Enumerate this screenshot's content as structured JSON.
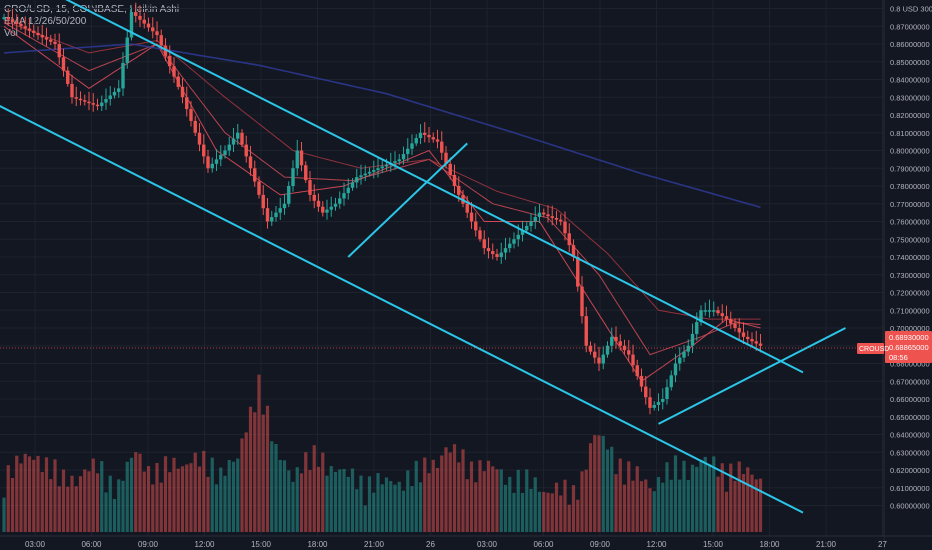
{
  "chart_data": {
    "type": "candlestick",
    "legend": {
      "symbol_line": "CRO/USD, 15, COINBASE, Heikin Ashi",
      "indicator_line": "EMA 12/26/50/200",
      "volume_line": "Vol"
    },
    "price_axis": {
      "ticks": [
        "0.8 USD 300",
        "0.87000000",
        "0.86000000",
        "0.85000000",
        "0.84000000",
        "0.83000000",
        "0.82000000",
        "0.81000000",
        "0.80000000",
        "0.79000000",
        "0.78000000",
        "0.77000000",
        "0.76000000",
        "0.75000000",
        "0.74000000",
        "0.73000000",
        "0.72000000",
        "0.71000000",
        "0.70000000",
        "0.69000000",
        "0.68000000",
        "0.67000000",
        "0.66000000",
        "0.65000000",
        "0.64000000",
        "0.63000000",
        "0.62000000",
        "0.61000000",
        "0.60000000"
      ],
      "ylim": [
        0.595,
        0.885
      ]
    },
    "time_axis": {
      "ticks": [
        "03:00",
        "06:00",
        "09:00",
        "12:00",
        "15:00",
        "18:00",
        "21:00",
        "26",
        "03:00",
        "06:00",
        "09:00",
        "12:00",
        "15:00",
        "18:00",
        "21:00",
        "27"
      ]
    },
    "last_price": {
      "label": "CROUSD",
      "values": [
        "0.68930000",
        "0.68865000",
        "08:56"
      ],
      "value": 0.6887
    },
    "price_path": [
      [
        0,
        0.875
      ],
      [
        12,
        0.86
      ],
      [
        16,
        0.83
      ],
      [
        22,
        0.825
      ],
      [
        27,
        0.835
      ],
      [
        30,
        0.878
      ],
      [
        36,
        0.865
      ],
      [
        42,
        0.83
      ],
      [
        48,
        0.79
      ],
      [
        52,
        0.8
      ],
      [
        55,
        0.81
      ],
      [
        58,
        0.79
      ],
      [
        62,
        0.76
      ],
      [
        66,
        0.77
      ],
      [
        69,
        0.8
      ],
      [
        72,
        0.775
      ],
      [
        75,
        0.765
      ],
      [
        78,
        0.77
      ],
      [
        83,
        0.785
      ],
      [
        88,
        0.79
      ],
      [
        93,
        0.795
      ],
      [
        98,
        0.81
      ],
      [
        102,
        0.805
      ],
      [
        106,
        0.78
      ],
      [
        110,
        0.76
      ],
      [
        113,
        0.745
      ],
      [
        116,
        0.74
      ],
      [
        120,
        0.75
      ],
      [
        126,
        0.765
      ],
      [
        131,
        0.76
      ],
      [
        134,
        0.74
      ],
      [
        137,
        0.69
      ],
      [
        140,
        0.68
      ],
      [
        143,
        0.695
      ],
      [
        147,
        0.685
      ],
      [
        152,
        0.655
      ],
      [
        155,
        0.66
      ],
      [
        158,
        0.68
      ],
      [
        161,
        0.69
      ],
      [
        164,
        0.71
      ],
      [
        167,
        0.71
      ],
      [
        170,
        0.705
      ],
      [
        174,
        0.695
      ],
      [
        178,
        0.69
      ]
    ],
    "ema_paths": [
      {
        "name": "EMA 12",
        "color": "#f7525f",
        "points": [
          [
            0,
            0.87
          ],
          [
            20,
            0.835
          ],
          [
            36,
            0.86
          ],
          [
            50,
            0.8
          ],
          [
            65,
            0.775
          ],
          [
            80,
            0.78
          ],
          [
            100,
            0.8
          ],
          [
            113,
            0.76
          ],
          [
            126,
            0.76
          ],
          [
            138,
            0.715
          ],
          [
            150,
            0.67
          ],
          [
            162,
            0.69
          ],
          [
            170,
            0.705
          ],
          [
            178,
            0.7
          ]
        ]
      },
      {
        "name": "EMA 26",
        "color": "#e0505a",
        "points": [
          [
            0,
            0.872
          ],
          [
            20,
            0.845
          ],
          [
            36,
            0.86
          ],
          [
            52,
            0.81
          ],
          [
            66,
            0.785
          ],
          [
            82,
            0.783
          ],
          [
            100,
            0.795
          ],
          [
            115,
            0.77
          ],
          [
            128,
            0.762
          ],
          [
            140,
            0.73
          ],
          [
            152,
            0.685
          ],
          [
            164,
            0.695
          ],
          [
            172,
            0.703
          ],
          [
            178,
            0.702
          ]
        ]
      },
      {
        "name": "EMA 50",
        "color": "#b23a44",
        "points": [
          [
            0,
            0.873
          ],
          [
            20,
            0.855
          ],
          [
            36,
            0.862
          ],
          [
            52,
            0.83
          ],
          [
            68,
            0.8
          ],
          [
            84,
            0.79
          ],
          [
            100,
            0.795
          ],
          [
            116,
            0.777
          ],
          [
            130,
            0.767
          ],
          [
            142,
            0.742
          ],
          [
            154,
            0.71
          ],
          [
            166,
            0.705
          ],
          [
            178,
            0.705
          ]
        ]
      },
      {
        "name": "EMA 200",
        "color": "#2f3c9e",
        "points": [
          [
            0,
            0.855
          ],
          [
            30,
            0.86
          ],
          [
            60,
            0.848
          ],
          [
            90,
            0.832
          ],
          [
            120,
            0.81
          ],
          [
            150,
            0.787
          ],
          [
            178,
            0.768
          ]
        ]
      }
    ],
    "volume_profile": [
      [
        0,
        8
      ],
      [
        8,
        12
      ],
      [
        14,
        6
      ],
      [
        22,
        9
      ],
      [
        27,
        5
      ],
      [
        31,
        12
      ],
      [
        36,
        8
      ],
      [
        44,
        11
      ],
      [
        50,
        9
      ],
      [
        55,
        10
      ],
      [
        60,
        30
      ],
      [
        64,
        12
      ],
      [
        68,
        8
      ],
      [
        74,
        12
      ],
      [
        80,
        7
      ],
      [
        90,
        5
      ],
      [
        98,
        8
      ],
      [
        104,
        13
      ],
      [
        110,
        10
      ],
      [
        116,
        8
      ],
      [
        122,
        6
      ],
      [
        128,
        4
      ],
      [
        134,
        3
      ],
      [
        139,
        16
      ],
      [
        142,
        14
      ],
      [
        147,
        8
      ],
      [
        152,
        5
      ],
      [
        158,
        9
      ],
      [
        164,
        10
      ],
      [
        170,
        9
      ],
      [
        176,
        7
      ]
    ],
    "trendlines": [
      {
        "name": "channel-upper-line",
        "from": [
          -10,
          0.915
        ],
        "to": [
          188,
          0.675
        ]
      },
      {
        "name": "channel-lower-line",
        "from": [
          -10,
          0.836
        ],
        "to": [
          188,
          0.596
        ]
      },
      {
        "name": "flag-1-line",
        "from": [
          81,
          0.74
        ],
        "to": [
          109,
          0.804
        ]
      },
      {
        "name": "flag-2-line",
        "from": [
          154,
          0.646
        ],
        "to": [
          198,
          0.7
        ]
      }
    ]
  },
  "colors": {
    "up": "#26a69a",
    "down": "#ef5350",
    "up_volume": "#26a69a80",
    "down_volume": "#ef535080",
    "trendline": "#2bc6e8",
    "grid": "#1e222d",
    "axis_text": "#b2b5be",
    "price_label_bg": "#ef5350"
  }
}
